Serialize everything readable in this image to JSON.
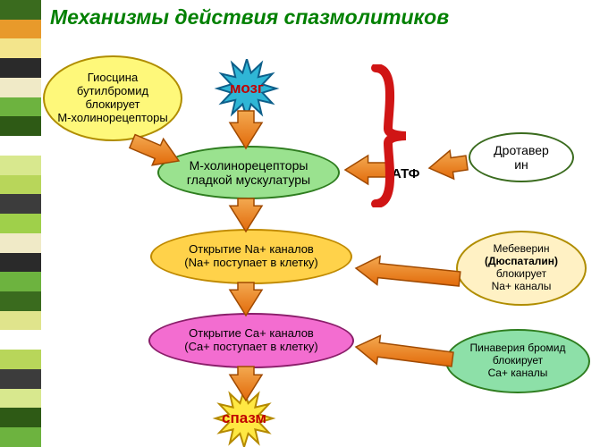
{
  "title": {
    "text": "Механизмы действия спазмолитиков",
    "color": "#008000"
  },
  "sidebarColors": [
    "#3a6b1e",
    "#e89a2b",
    "#f3e58c",
    "#2a2a2a",
    "#f0eac7",
    "#6db33f",
    "#2e5a15",
    "#ffffff",
    "#d8e88e",
    "#b8d65a",
    "#3c3c3c",
    "#9fd04a",
    "#f0eac7",
    "#2a2a2a",
    "#6db33f",
    "#3a6b1e",
    "#e0e48c",
    "#ffffff",
    "#b8d65a",
    "#3c3c3c",
    "#d8e88e",
    "#2e5a15",
    "#6db33f"
  ],
  "starbursts": {
    "brain": {
      "label": "мозг",
      "fill": "#2fb6d6",
      "stroke": "#0d5f8a",
      "textColor": "#c00000",
      "fontSize": 17
    },
    "spasm": {
      "label": "спазм",
      "fill": "#ffe843",
      "stroke": "#b58a00",
      "textColor": "#c00000",
      "fontSize": 17
    }
  },
  "nodes": {
    "hyoscine": {
      "l1": "Гиосцина",
      "l2": "бутилбромид",
      "l3": "блокирует",
      "l4": "М-холинорецепторы",
      "fill": "#fef87a",
      "stroke": "#b08d00",
      "fontSize": 13
    },
    "receptors": {
      "l1": "М-холинорецепторы",
      "l2": "гладкой мускулатуры",
      "fill": "#9ae28f",
      "stroke": "#2e7d1f",
      "fontSize": 14
    },
    "naChannels": {
      "l1": "Открытие Na+ каналов",
      "l2": "(Na+ поступает в клетку)",
      "fill": "#ffd24a",
      "stroke": "#c08a00",
      "fontSize": 13
    },
    "caChannels": {
      "l1": "Открытие Ca+ каналов",
      "l2": "(Ca+ поступает в клетку)",
      "fill": "#f36dd0",
      "stroke": "#8a1e6a",
      "fontSize": 13
    },
    "drotaverin": {
      "l1": "Дротавер",
      "l2": "ин",
      "fill": "#ffffff",
      "stroke": "#3a6b1e",
      "fontSize": 14
    },
    "mebeverin": {
      "l1": "Мебеверин",
      "l2": "(Дюспаталин)",
      "l3": "блокирует",
      "l4": "Na+ каналы",
      "fill": "#fff1c4",
      "stroke": "#b08d00",
      "fontSize": 12
    },
    "pinaverium": {
      "l1": "Пинаверия бромид",
      "l2": "блокирует",
      "l3": "Ca+ каналы",
      "fill": "#8de0a8",
      "stroke": "#2e7d1f",
      "fontSize": 12
    }
  },
  "atpLabel": "АТФ",
  "arrowColors": {
    "fill": "#f08a24",
    "stroke": "#a04a00"
  },
  "braceColor": "#d01515"
}
